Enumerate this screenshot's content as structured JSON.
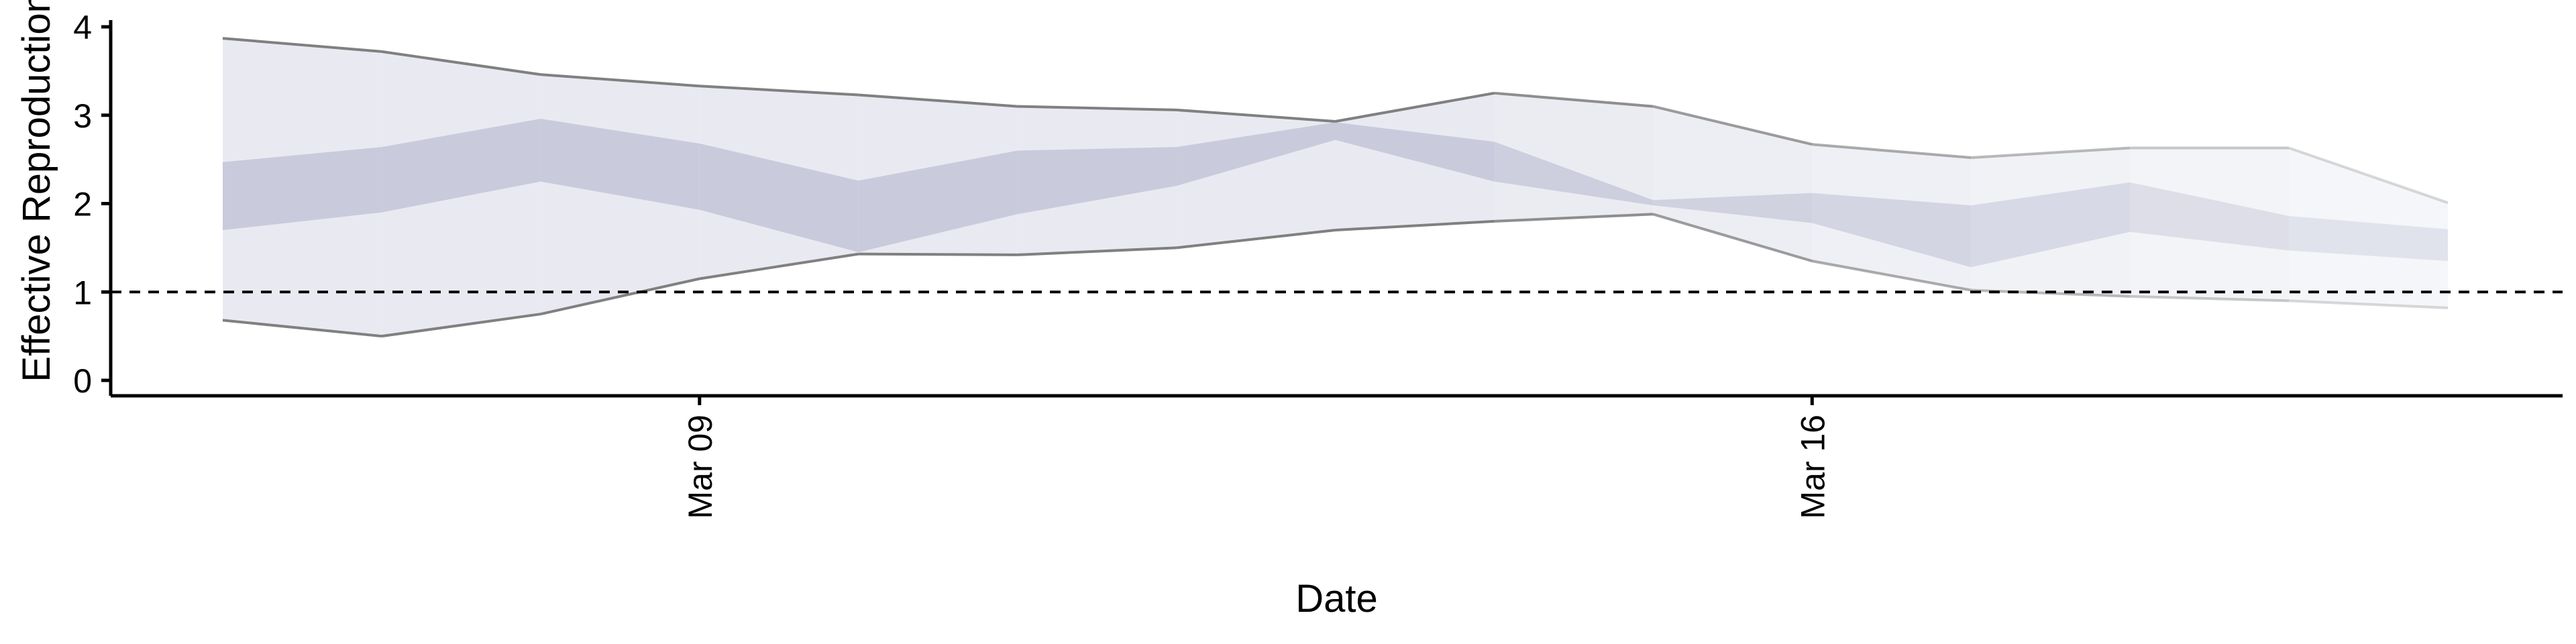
{
  "chart_data": {
    "type": "area",
    "title": "",
    "xlabel": "Date",
    "ylabel": "Effective Reproduction no.",
    "x_tick_labels": [
      "Mar 09",
      "Mar 16"
    ],
    "y_tick_labels": [
      "0",
      "1",
      "2",
      "3",
      "4"
    ],
    "x": [
      "Mar 06",
      "Mar 07",
      "Mar 08",
      "Mar 09",
      "Mar 10",
      "Mar 11",
      "Mar 12",
      "Mar 13",
      "Mar 14",
      "Mar 15",
      "Mar 16",
      "Mar 17",
      "Mar 18",
      "Mar 19",
      "Mar 20"
    ],
    "xlim": [
      "Mar 05",
      "Mar 21"
    ],
    "ylim": [
      0,
      4
    ],
    "reference_line": {
      "y": 1,
      "style": "dashed"
    },
    "series": [
      {
        "name": "",
        "role": "outer_interval",
        "lower": [
          0.68,
          0.5,
          0.75,
          1.15,
          1.43,
          1.42,
          1.5,
          1.7,
          1.8,
          1.88,
          1.35,
          1.02,
          0.95,
          0.9,
          0.82
        ],
        "upper": [
          3.87,
          3.72,
          3.46,
          3.33,
          3.23,
          3.1,
          3.06,
          2.93,
          3.25,
          3.1,
          2.67,
          2.52,
          2.63,
          2.63,
          2.01
        ]
      },
      {
        "name": "",
        "role": "inner_interval",
        "lower": [
          1.7,
          1.9,
          2.25,
          1.93,
          1.45,
          1.88,
          2.2,
          2.72,
          2.25,
          1.98,
          1.78,
          1.28,
          1.68,
          1.47,
          1.35
        ],
        "upper": [
          2.47,
          2.64,
          2.96,
          2.68,
          2.26,
          2.6,
          2.64,
          2.92,
          2.7,
          2.04,
          2.12,
          1.98,
          2.24,
          1.86,
          1.71
        ]
      }
    ],
    "colors": {
      "outer_fill": "#e9eaf1",
      "inner_fill": "#c9cbdc",
      "outer_line": "#808080",
      "dashed_line": "#000000",
      "axis": "#000000"
    },
    "fade_after": "Mar 14",
    "grid": false,
    "legend": "none"
  }
}
